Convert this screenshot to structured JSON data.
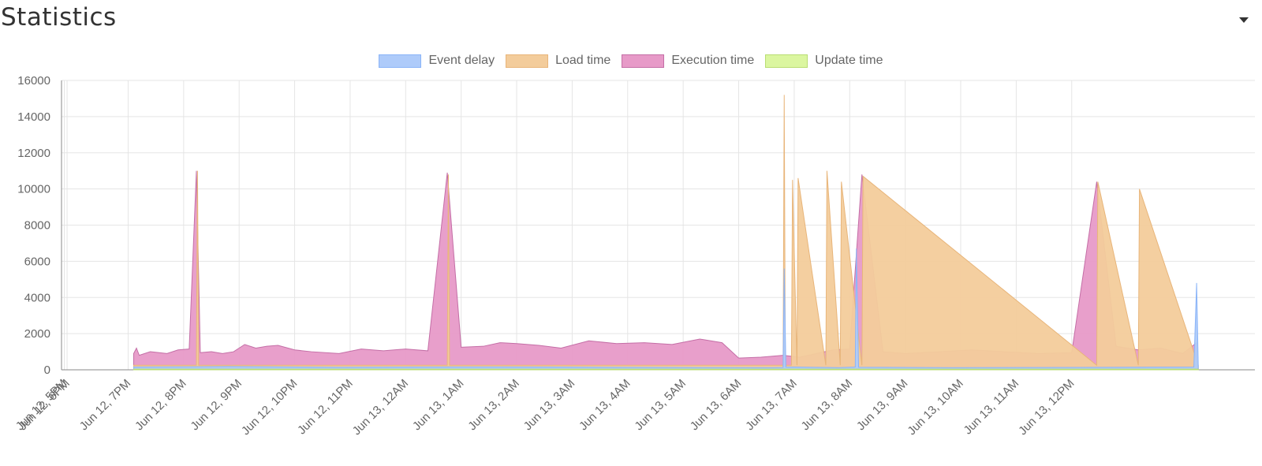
{
  "header": {
    "title": "Statistics",
    "toggle_icon": "caret-down-icon"
  },
  "chart_data": {
    "type": "area",
    "title": "",
    "xlabel": "",
    "ylabel": "",
    "ylim": [
      0,
      16000
    ],
    "yticks": [
      0,
      2000,
      4000,
      6000,
      8000,
      10000,
      12000,
      14000,
      16000
    ],
    "x_range_hours": [
      17,
      38.5
    ],
    "xtick_labels": [
      "Jun 12, 5PM",
      "Jun 12, 6PM",
      "Jun 12, 7PM",
      "Jun 12, 8PM",
      "Jun 12, 9PM",
      "Jun 12, 10PM",
      "Jun 12, 11PM",
      "Jun 13, 12AM",
      "Jun 13, 1AM",
      "Jun 13, 2AM",
      "Jun 13, 3AM",
      "Jun 13, 4AM",
      "Jun 13, 5AM",
      "Jun 13, 6AM",
      "Jun 13, 7AM",
      "Jun 13, 8AM",
      "Jun 13, 9AM",
      "Jun 13, 10AM",
      "Jun 13, 11AM",
      "Jun 13, 12PM"
    ],
    "xtick_hours": [
      17.05,
      17.1,
      18.2,
      19.2,
      20.2,
      21.2,
      22.2,
      23.2,
      24.2,
      25.2,
      26.2,
      27.2,
      28.2,
      29.2,
      30.2,
      31.2,
      32.2,
      33.2,
      34.2,
      35.2
    ],
    "grid": true,
    "legend_position": "top-center",
    "series": [
      {
        "name": "Event delay",
        "color": "#aecbfa",
        "border": "#8ab4f8",
        "x": [
          18.3,
          20,
          22,
          24,
          26,
          28,
          29.8,
          30.0,
          30.02,
          30.05,
          31.0,
          31.3,
          31.32,
          31.36,
          33,
          35,
          37.4,
          37.45,
          37.48
        ],
        "values": [
          150,
          180,
          140,
          160,
          150,
          130,
          120,
          130,
          5600,
          160,
          120,
          150,
          6700,
          140,
          120,
          130,
          150,
          4800,
          150
        ]
      },
      {
        "name": "Load time",
        "color": "#f3cc9b",
        "border": "#e8b57a",
        "x": [
          18.3,
          19.43,
          19.45,
          19.47,
          23.95,
          23.97,
          23.99,
          30.0,
          30.02,
          30.04,
          30.15,
          30.17,
          30.25,
          30.27,
          30.77,
          30.79,
          31.03,
          31.05,
          31.42,
          31.44,
          35.65,
          35.67,
          36.4,
          36.42,
          37.48
        ],
        "values": [
          250,
          250,
          11000,
          250,
          250,
          10800,
          250,
          250,
          15200,
          250,
          250,
          10500,
          250,
          10600,
          250,
          11000,
          250,
          10400,
          250,
          10700,
          250,
          10400,
          250,
          10000,
          250
        ]
      },
      {
        "name": "Execution time",
        "color": "#e79ac8",
        "border": "#c46ea6",
        "x": [
          18.3,
          18.35,
          18.4,
          18.6,
          18.9,
          19.1,
          19.3,
          19.43,
          19.5,
          19.7,
          19.9,
          20.1,
          20.3,
          20.5,
          20.7,
          20.9,
          21.2,
          21.5,
          22.0,
          22.4,
          22.8,
          23.2,
          23.6,
          23.95,
          24.2,
          24.6,
          24.9,
          25.2,
          25.6,
          26.0,
          26.5,
          27.0,
          27.5,
          28.0,
          28.5,
          28.9,
          29.2,
          29.6,
          30.0,
          30.3,
          30.6,
          30.9,
          31.2,
          31.42,
          31.8,
          32.2,
          32.8,
          33.4,
          34.0,
          34.6,
          35.2,
          35.65,
          36.0,
          36.4,
          36.8,
          37.2,
          37.45
        ],
        "values": [
          900,
          1200,
          800,
          1000,
          900,
          1100,
          1150,
          11000,
          950,
          1000,
          900,
          1000,
          1400,
          1200,
          1300,
          1350,
          1100,
          1000,
          900,
          1150,
          1050,
          1150,
          1050,
          10900,
          1250,
          1300,
          1500,
          1450,
          1350,
          1200,
          1600,
          1450,
          1500,
          1400,
          1700,
          1500,
          650,
          700,
          800,
          700,
          900,
          1100,
          1150,
          10800,
          1000,
          900,
          1000,
          1100,
          1000,
          900,
          950,
          10400,
          1300,
          1100,
          1200,
          900,
          1500
        ]
      },
      {
        "name": "Update time",
        "color": "#dbf6a0",
        "border": "#b9dd73",
        "x": [
          18.3,
          37.48
        ],
        "values": [
          40,
          40
        ]
      }
    ]
  }
}
